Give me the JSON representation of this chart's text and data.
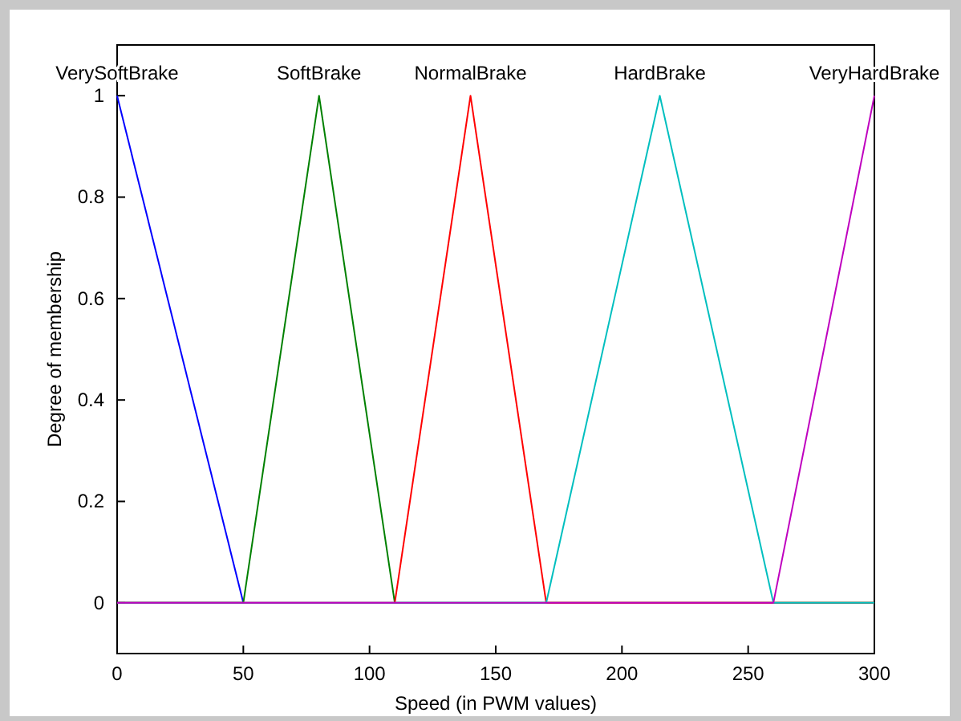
{
  "chart_data": {
    "type": "line",
    "xlabel": "Speed (in PWM values)",
    "ylabel": "Degree of membership",
    "xlim": [
      0,
      300
    ],
    "xticks": [
      0,
      50,
      100,
      150,
      200,
      250,
      300
    ],
    "ylim": [
      -0.1,
      1.1
    ],
    "yticks": [
      0,
      0.2,
      0.4,
      0.6,
      0.8,
      1
    ],
    "grid": false,
    "marker": "none",
    "line_style": "solid",
    "series": [
      {
        "name": "VerySoftBrake",
        "color": "#0000ff",
        "x": [
          0,
          50
        ],
        "values": [
          1,
          0
        ]
      },
      {
        "name": "SoftBrake",
        "color": "#008000",
        "x": [
          0,
          50,
          80,
          110,
          300
        ],
        "values": [
          0,
          0,
          1,
          0,
          0
        ]
      },
      {
        "name": "NormalBrake",
        "color": "#ff0000",
        "x": [
          0,
          110,
          140,
          170,
          300
        ],
        "values": [
          0,
          0,
          1,
          0,
          0
        ]
      },
      {
        "name": "HardBrake",
        "color": "#00bfbf",
        "x": [
          0,
          170,
          215,
          260,
          300
        ],
        "values": [
          0,
          0,
          1,
          0,
          0
        ]
      },
      {
        "name": "VeryHardBrake",
        "color": "#bf00bf",
        "x": [
          0,
          260,
          300
        ],
        "values": [
          0,
          0,
          1
        ]
      }
    ]
  }
}
